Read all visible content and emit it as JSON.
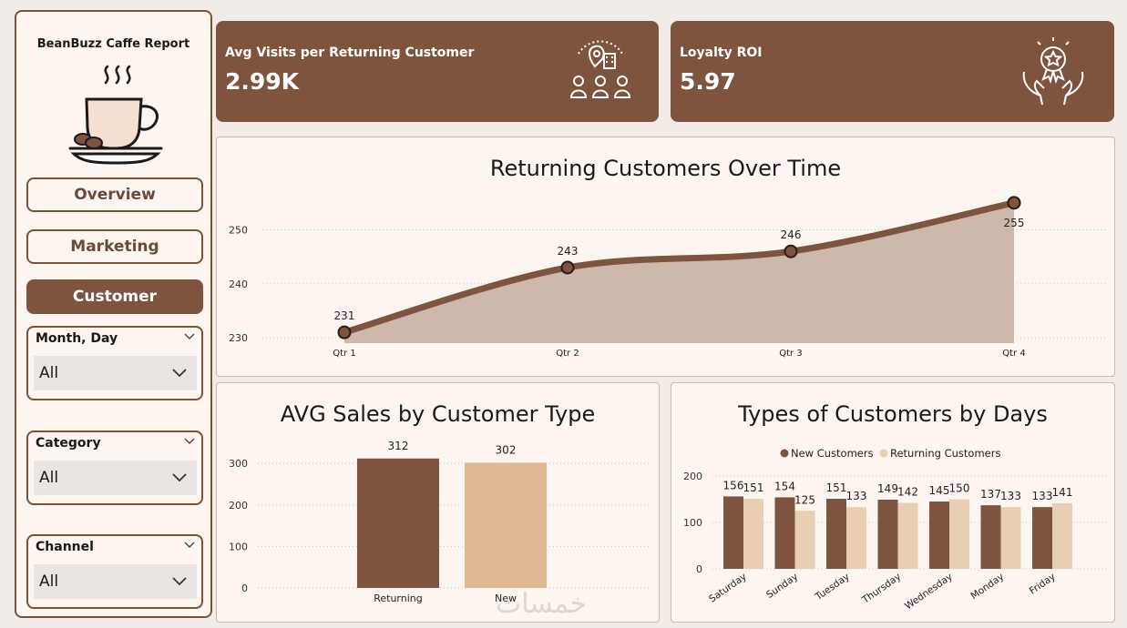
{
  "sidebar": {
    "title": "BeanBuzz Caffe Report",
    "nav": [
      {
        "label": "Overview",
        "active": false
      },
      {
        "label": "Marketing",
        "active": false
      },
      {
        "label": "Customer",
        "active": true
      }
    ],
    "slicers": [
      {
        "label": "Month, Day",
        "value": "All"
      },
      {
        "label": "Category",
        "value": "All"
      },
      {
        "label": "Channel",
        "value": "All"
      }
    ]
  },
  "kpis": [
    {
      "label": "Avg Visits per Returning Customer",
      "value": "2.99K",
      "icon": "customers-location-icon"
    },
    {
      "label": "Loyalty ROI",
      "value": "5.97",
      "icon": "award-hands-icon"
    }
  ],
  "colors": {
    "brown": "#7f543e",
    "tan": "#e0b894",
    "area": "#c8b2a4",
    "bg": "#fdf5f0"
  },
  "watermark": "خمسات",
  "chart_data": [
    {
      "type": "area",
      "title": "Returning Customers Over Time",
      "categories": [
        "Qtr 1",
        "Qtr 2",
        "Qtr 3",
        "Qtr 4"
      ],
      "series": [
        {
          "values": [
            231,
            243,
            246,
            255
          ]
        }
      ],
      "data_labels": [
        "231",
        "243",
        "246",
        "255"
      ],
      "yticks": [
        "230",
        "240",
        "250"
      ],
      "ylim": [
        229,
        257
      ]
    },
    {
      "type": "bar",
      "title": "AVG Sales by Customer Type",
      "categories": [
        "Returning",
        "New"
      ],
      "values": [
        312,
        302
      ],
      "data_labels": [
        "312",
        "302"
      ],
      "yticks": [
        "0",
        "100",
        "200",
        "300"
      ],
      "ylim": [
        0,
        340
      ]
    },
    {
      "type": "bar",
      "title": "Types of Customers by Days",
      "categories": [
        "Saturday",
        "Sunday",
        "Tuesday",
        "Thursday",
        "Wednesday",
        "Monday",
        "Friday"
      ],
      "series": [
        {
          "name": "New Customers",
          "values": [
            156,
            154,
            151,
            149,
            145,
            137,
            133
          ]
        },
        {
          "name": "Returning Customers",
          "values": [
            151,
            125,
            133,
            142,
            150,
            133,
            141
          ]
        }
      ],
      "yticks": [
        "0",
        "100",
        "200"
      ],
      "ylim": [
        0,
        200
      ],
      "legend": "top-center"
    }
  ]
}
